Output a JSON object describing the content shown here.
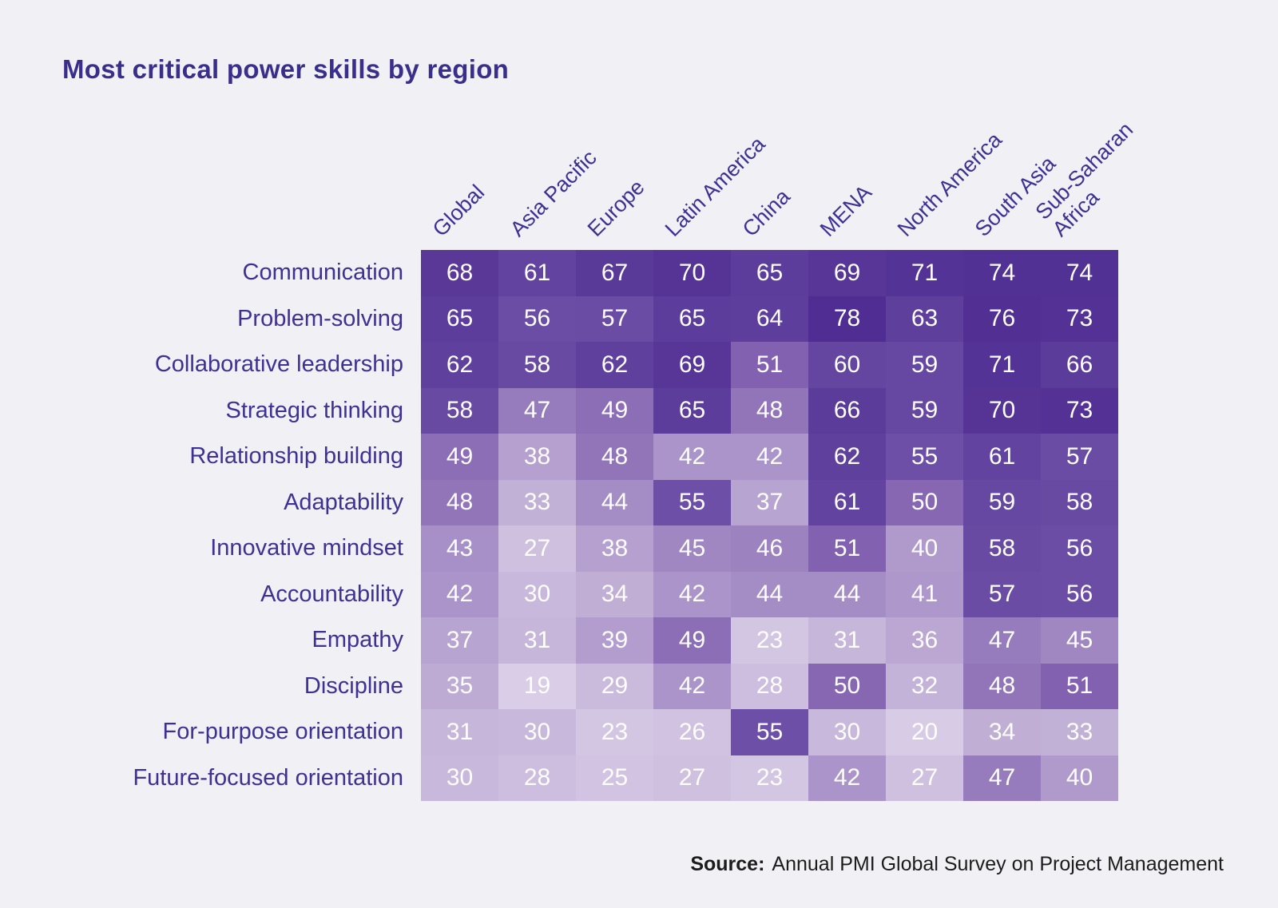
{
  "page": {
    "background": "#f1f0f4"
  },
  "title": "Most critical power skills by region",
  "source": {
    "label": "Source:",
    "text": "Annual PMI Global Survey on Project Management"
  },
  "chart_data": {
    "type": "heatmap",
    "title": "Most critical power skills by region",
    "columns": [
      "Global",
      "Asia Pacific",
      "Europe",
      "Latin America",
      "China",
      "MENA",
      "North America",
      "South Asia",
      "Sub-Saharan\nAfrica"
    ],
    "rows": [
      "Communication",
      "Problem-solving",
      "Collaborative leadership",
      "Strategic thinking",
      "Relationship building",
      "Adaptability",
      "Innovative mindset",
      "Accountability",
      "Empathy",
      "Discipline",
      "For-purpose orientation",
      "Future-focused orientation"
    ],
    "values": [
      [
        68,
        61,
        67,
        70,
        65,
        69,
        71,
        74,
        74
      ],
      [
        65,
        56,
        57,
        65,
        64,
        78,
        63,
        76,
        73
      ],
      [
        62,
        58,
        62,
        69,
        51,
        60,
        59,
        71,
        66
      ],
      [
        58,
        47,
        49,
        65,
        48,
        66,
        59,
        70,
        73
      ],
      [
        49,
        38,
        48,
        42,
        42,
        62,
        55,
        61,
        57
      ],
      [
        48,
        33,
        44,
        55,
        37,
        61,
        50,
        59,
        58
      ],
      [
        43,
        27,
        38,
        45,
        46,
        51,
        40,
        58,
        56
      ],
      [
        42,
        30,
        34,
        42,
        44,
        44,
        41,
        57,
        56
      ],
      [
        37,
        31,
        39,
        49,
        23,
        31,
        36,
        47,
        45
      ],
      [
        35,
        19,
        29,
        42,
        28,
        50,
        32,
        48,
        51
      ],
      [
        31,
        30,
        23,
        26,
        55,
        30,
        20,
        34,
        33
      ],
      [
        30,
        28,
        25,
        27,
        23,
        42,
        27,
        47,
        40
      ]
    ],
    "value_min": 19,
    "value_max": 78,
    "legend_position": "none",
    "grid": false,
    "cell_text_color": "#ffffff",
    "label_color": "#3e3193",
    "title_color": "#3a2e8c",
    "color_scale": {
      "low": "#d9cde7",
      "high": "#4f2d92",
      "stops": [
        [
          19,
          "#d9cde7"
        ],
        [
          23,
          "#d3c6e2"
        ],
        [
          27,
          "#cfc0df"
        ],
        [
          30,
          "#c8b8db"
        ],
        [
          34,
          "#c0aed5"
        ],
        [
          38,
          "#b5a0cf"
        ],
        [
          42,
          "#ab94c9"
        ],
        [
          46,
          "#9c83c0"
        ],
        [
          50,
          "#8767b2"
        ],
        [
          55,
          "#6e4fa7"
        ],
        [
          58,
          "#684aa3"
        ],
        [
          62,
          "#60409d"
        ],
        [
          66,
          "#5c3c9a"
        ],
        [
          70,
          "#553496"
        ],
        [
          78,
          "#4f2d92"
        ]
      ]
    }
  }
}
